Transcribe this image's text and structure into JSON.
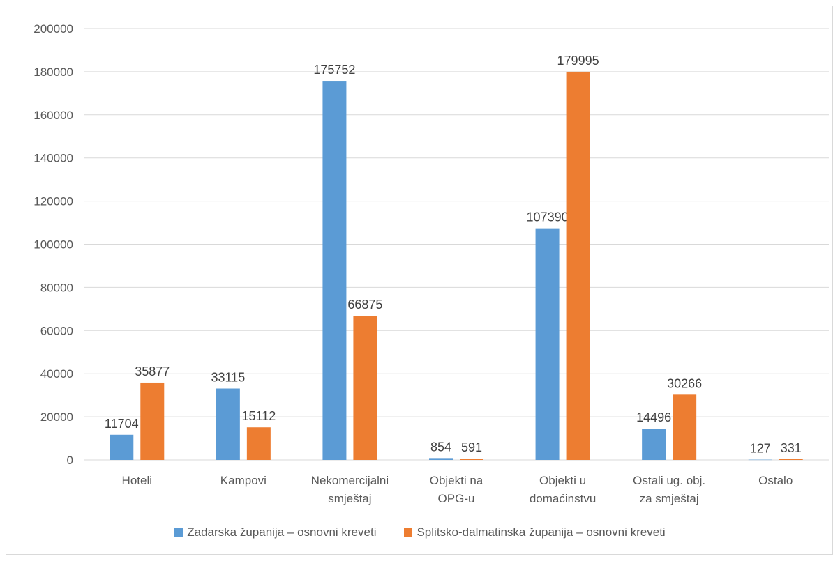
{
  "chart_data": {
    "type": "bar",
    "categories": [
      [
        "Hoteli"
      ],
      [
        "Kampovi"
      ],
      [
        "Nekomercijalni",
        "smještaj"
      ],
      [
        "Objekti na",
        "OPG-u"
      ],
      [
        "Objekti u",
        "domaćinstvu"
      ],
      [
        "Ostali ug. obj.",
        "za smještaj"
      ],
      [
        "Ostalo"
      ]
    ],
    "series": [
      {
        "name": "Zadarska županija – osnovni kreveti",
        "color": "#5b9bd5",
        "values": [
          11704,
          33115,
          175752,
          854,
          107390,
          14496,
          127
        ]
      },
      {
        "name": "Splitsko-dalmatinska županija – osnovni kreveti",
        "color": "#ed7d31",
        "values": [
          35877,
          15112,
          66875,
          591,
          179995,
          30266,
          331
        ]
      }
    ],
    "ylim": [
      0,
      200000
    ],
    "yticks": [
      0,
      20000,
      40000,
      60000,
      80000,
      100000,
      120000,
      140000,
      160000,
      180000,
      200000
    ],
    "grid": true,
    "legend_position": "bottom",
    "gridline_color": "#d9d9d9"
  }
}
